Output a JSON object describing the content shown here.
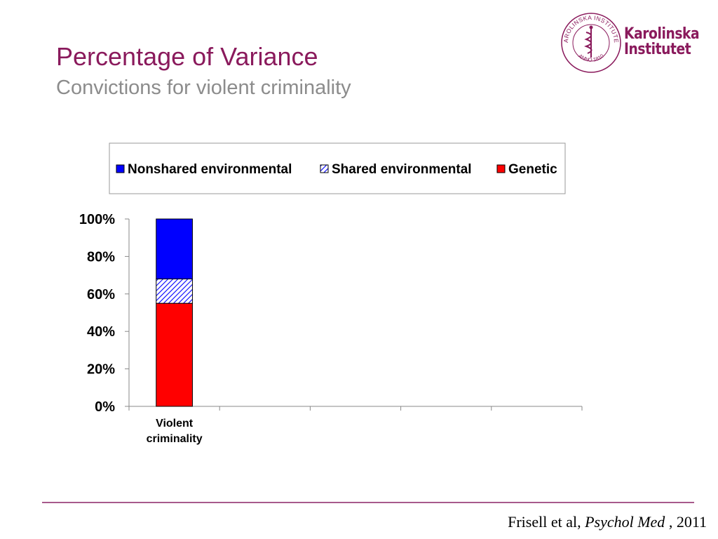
{
  "slide": {
    "title": "Percentage of Variance",
    "subtitle": "Convictions for violent criminality"
  },
  "logo": {
    "name_line1": "Karolinska",
    "name_line2": "Institutet",
    "seal_text": "KAROLINSKA INSTITUTET",
    "seal_year": "ANNO 1810",
    "color": "#8a1a5c"
  },
  "chart_data": {
    "type": "bar",
    "stacked": true,
    "percent": true,
    "categories": [
      "Violent criminality"
    ],
    "series": [
      {
        "name": "Genetic",
        "values": [
          55
        ],
        "color": "#ff0000",
        "pattern": "solid"
      },
      {
        "name": "Shared environmental",
        "values": [
          13
        ],
        "color": "#0000ff",
        "pattern": "hatched"
      },
      {
        "name": "Nonshared environmental",
        "values": [
          32
        ],
        "color": "#0000ff",
        "pattern": "solid"
      }
    ],
    "legend_order": [
      "Nonshared environmental",
      "Shared environmental",
      "Genetic"
    ],
    "yticks": [
      "0%",
      "20%",
      "40%",
      "60%",
      "80%",
      "100%"
    ],
    "ylim": [
      0,
      100
    ],
    "legend_position": "top",
    "grid": false,
    "empty_slots": 4
  },
  "citation": {
    "authors": "Frisell et al, ",
    "journal": "Psychol Med",
    "year": " , 2011"
  }
}
